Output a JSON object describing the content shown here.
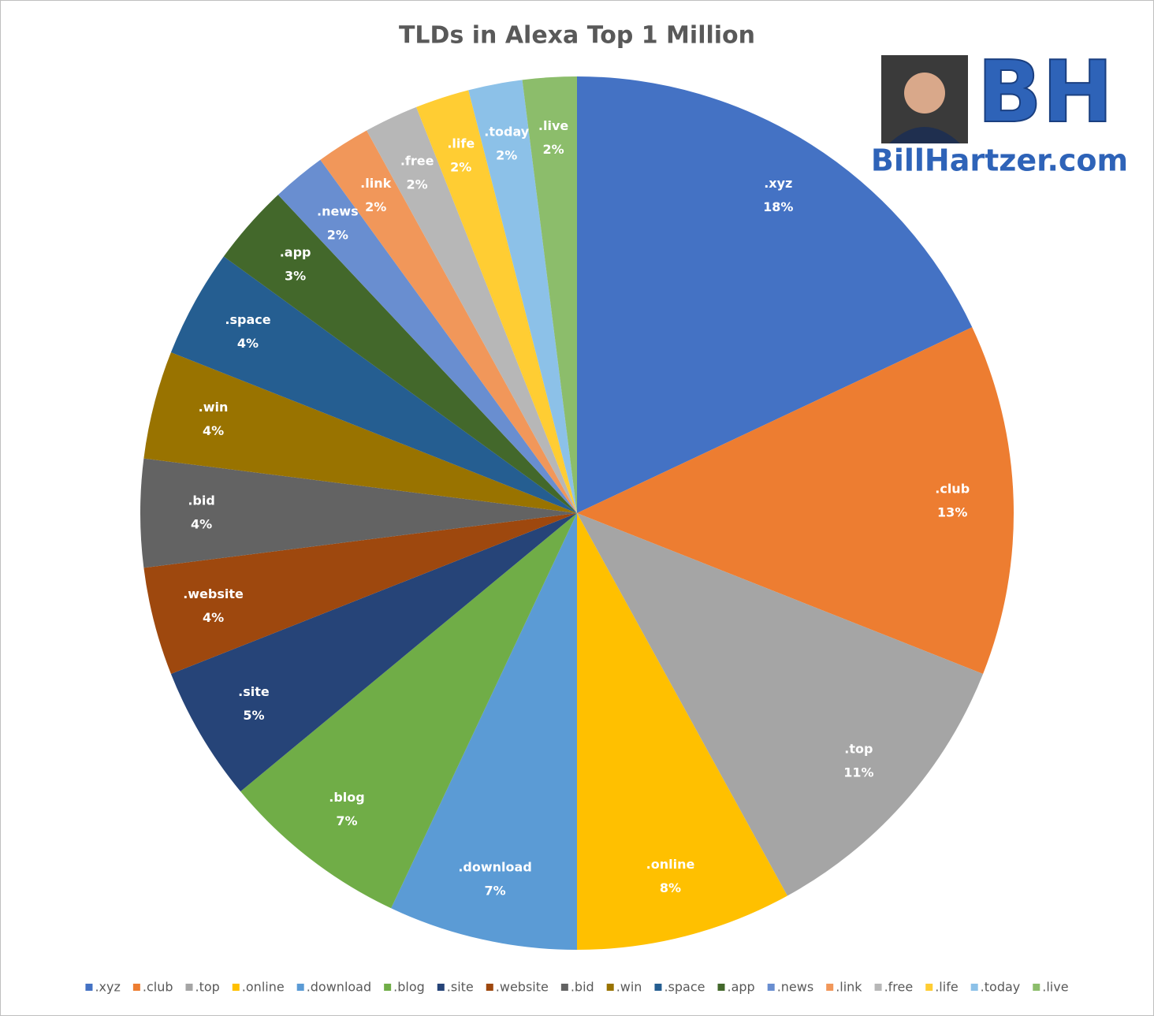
{
  "chart_data": {
    "type": "pie",
    "title": "TLDs in Alexa Top 1 Million",
    "categories": [
      ".xyz",
      ".club",
      ".top",
      ".online",
      ".download",
      ".blog",
      ".site",
      ".website",
      ".bid",
      ".win",
      ".space",
      ".app",
      ".news",
      ".link",
      ".free",
      ".life",
      ".today",
      ".live"
    ],
    "values": [
      18,
      13,
      11,
      8,
      7,
      7,
      5,
      4,
      4,
      4,
      4,
      3,
      2,
      2,
      2,
      2,
      2,
      2
    ],
    "value_labels": [
      "18%",
      "13%",
      "11%",
      "8%",
      "7%",
      "7%",
      "5%",
      "4%",
      "4%",
      "4%",
      "4%",
      "3%",
      "2%",
      "2%",
      "2%",
      "2%",
      "2%",
      "2%"
    ],
    "colors": [
      "#4472c4",
      "#ed7d31",
      "#a5a5a5",
      "#ffc000",
      "#5b9bd5",
      "#70ad47",
      "#264478",
      "#9e480e",
      "#636363",
      "#997300",
      "#255e91",
      "#43682b",
      "#698ed0",
      "#f1975a",
      "#b7b7b7",
      "#ffcd33",
      "#8cc1e8",
      "#8cbd6b"
    ],
    "legend": "bottom"
  },
  "logo": {
    "letters": "BH",
    "text": "BillHartzer.com"
  }
}
